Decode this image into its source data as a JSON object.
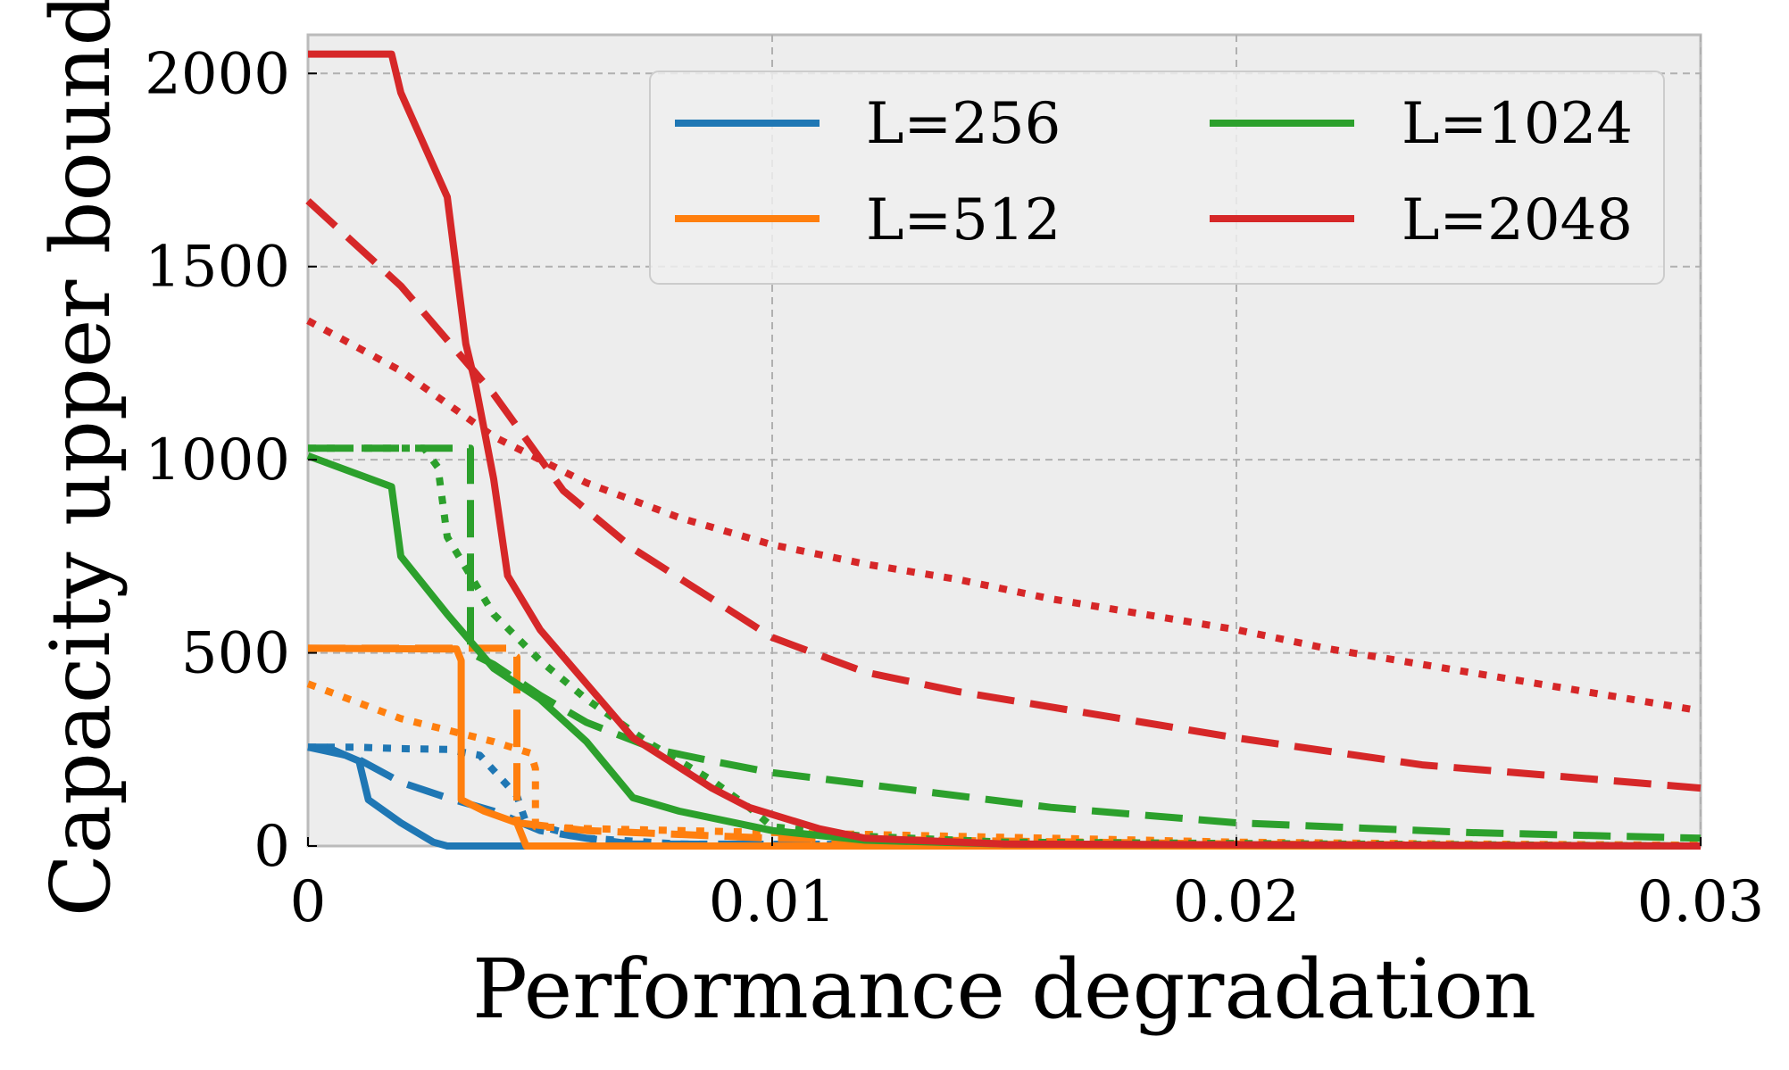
{
  "chart_data": {
    "type": "line",
    "title": "",
    "xlabel": "Performance degradation",
    "ylabel": "Capacity upper bound",
    "xlim": [
      0,
      0.03
    ],
    "ylim": [
      0,
      2100
    ],
    "xticks": [
      0,
      0.01,
      0.02,
      0.03
    ],
    "xtick_labels": [
      "0",
      "0.01",
      "0.02",
      "0.03"
    ],
    "yticks": [
      0,
      500,
      1000,
      1500,
      2000
    ],
    "ytick_labels": [
      "0",
      "500",
      "1000",
      "1500",
      "2000"
    ],
    "grid": true,
    "legend_position": "top-right",
    "legend": [
      {
        "label": "L=256",
        "color": "#1f77b4"
      },
      {
        "label": "L=512",
        "color": "#ff7f0e"
      },
      {
        "label": "L=1024",
        "color": "#2ca02c"
      },
      {
        "label": "L=2048",
        "color": "#d62728"
      }
    ],
    "series": [
      {
        "name": "L=256 solid",
        "group": "L=256",
        "style": "solid",
        "color": "#1f77b4",
        "x": [
          0,
          0.0004,
          0.0011,
          0.0013,
          0.002,
          0.0027,
          0.003,
          0.03
        ],
        "y": [
          256,
          256,
          220,
          120,
          60,
          10,
          0,
          0
        ]
      },
      {
        "name": "L=256 dashed",
        "group": "L=256",
        "style": "dashed",
        "color": "#1f77b4",
        "x": [
          0,
          0.001,
          0.002,
          0.003,
          0.004,
          0.0046,
          0.005,
          0.006,
          0.007,
          0.03
        ],
        "y": [
          256,
          230,
          165,
          125,
          90,
          60,
          40,
          20,
          5,
          0
        ]
      },
      {
        "name": "L=256 dotted",
        "group": "L=256",
        "style": "dotted",
        "color": "#1f77b4",
        "x": [
          0,
          0.001,
          0.002,
          0.003,
          0.0037,
          0.0045,
          0.0047,
          0.006,
          0.008,
          0.03
        ],
        "y": [
          256,
          256,
          252,
          250,
          235,
          130,
          60,
          20,
          5,
          0
        ]
      },
      {
        "name": "L=512 solid",
        "group": "L=512",
        "style": "solid",
        "color": "#ff7f0e",
        "x": [
          0,
          0.0032,
          0.0033,
          0.0033,
          0.0038,
          0.0045,
          0.0047,
          0.03
        ],
        "y": [
          512,
          510,
          480,
          120,
          90,
          60,
          0,
          0
        ]
      },
      {
        "name": "L=512 dashed",
        "group": "L=512",
        "style": "dashed",
        "color": "#ff7f0e",
        "x": [
          0,
          0.0042,
          0.0044,
          0.0044,
          0.0045,
          0.0045,
          0.006,
          0.01,
          0.02,
          0.03
        ],
        "y": [
          512,
          512,
          512,
          500,
          490,
          60,
          40,
          20,
          5,
          0
        ]
      },
      {
        "name": "L=512 dotted",
        "group": "L=512",
        "style": "dotted",
        "color": "#ff7f0e",
        "x": [
          0,
          0.001,
          0.002,
          0.003,
          0.004,
          0.0048,
          0.0049,
          0.0049,
          0.006,
          0.008,
          0.01,
          0.012,
          0.014,
          0.016,
          0.018,
          0.02,
          0.025,
          0.03
        ],
        "y": [
          420,
          375,
          330,
          300,
          270,
          240,
          200,
          50,
          45,
          40,
          35,
          30,
          25,
          20,
          15,
          10,
          5,
          2
        ]
      },
      {
        "name": "L=1024 solid",
        "group": "L=1024",
        "style": "solid",
        "color": "#2ca02c",
        "x": [
          0,
          0.0018,
          0.002,
          0.003,
          0.004,
          0.005,
          0.006,
          0.007,
          0.008,
          0.01,
          0.012,
          0.015,
          0.03
        ],
        "y": [
          1010,
          930,
          750,
          600,
          460,
          380,
          270,
          125,
          90,
          40,
          15,
          5,
          0
        ]
      },
      {
        "name": "L=1024 dashed",
        "group": "L=1024",
        "style": "dashed",
        "color": "#2ca02c",
        "x": [
          0,
          0.0035,
          0.0035,
          0.0035,
          0.004,
          0.005,
          0.006,
          0.0075,
          0.0087,
          0.01,
          0.012,
          0.014,
          0.016,
          0.018,
          0.02,
          0.025,
          0.03
        ],
        "y": [
          1030,
          1030,
          1010,
          500,
          470,
          390,
          320,
          250,
          220,
          190,
          160,
          130,
          100,
          80,
          60,
          35,
          20
        ]
      },
      {
        "name": "L=1024 dotted",
        "group": "L=1024",
        "style": "dotted",
        "color": "#2ca02c",
        "x": [
          0,
          0.0025,
          0.0028,
          0.003,
          0.0035,
          0.004,
          0.005,
          0.006,
          0.0073,
          0.0087,
          0.0095,
          0.01,
          0.012,
          0.015,
          0.03
        ],
        "y": [
          1030,
          1030,
          980,
          800,
          700,
          600,
          480,
          380,
          270,
          170,
          100,
          50,
          25,
          10,
          0
        ]
      },
      {
        "name": "L=2048 solid",
        "group": "L=2048",
        "style": "solid",
        "color": "#d62728",
        "x": [
          0,
          0.0018,
          0.002,
          0.003,
          0.0034,
          0.0036,
          0.004,
          0.0043,
          0.005,
          0.006,
          0.007,
          0.0087,
          0.0095,
          0.011,
          0.012,
          0.015,
          0.03
        ],
        "y": [
          2050,
          2050,
          1950,
          1680,
          1300,
          1200,
          950,
          700,
          560,
          420,
          280,
          150,
          100,
          45,
          20,
          5,
          0
        ]
      },
      {
        "name": "L=2048 dashed",
        "group": "L=2048",
        "style": "dashed",
        "color": "#d62728",
        "x": [
          0,
          0.002,
          0.004,
          0.0055,
          0.007,
          0.0087,
          0.01,
          0.012,
          0.014,
          0.016,
          0.018,
          0.02,
          0.024,
          0.03
        ],
        "y": [
          1670,
          1450,
          1170,
          920,
          770,
          640,
          540,
          450,
          400,
          360,
          320,
          280,
          210,
          150
        ]
      },
      {
        "name": "L=2048 dotted",
        "group": "L=2048",
        "style": "dotted",
        "color": "#d62728",
        "x": [
          0,
          0.002,
          0.004,
          0.006,
          0.008,
          0.01,
          0.012,
          0.014,
          0.016,
          0.018,
          0.02,
          0.022,
          0.025,
          0.03
        ],
        "y": [
          1360,
          1230,
          1060,
          940,
          850,
          780,
          730,
          690,
          640,
          600,
          560,
          510,
          450,
          350
        ]
      }
    ]
  }
}
